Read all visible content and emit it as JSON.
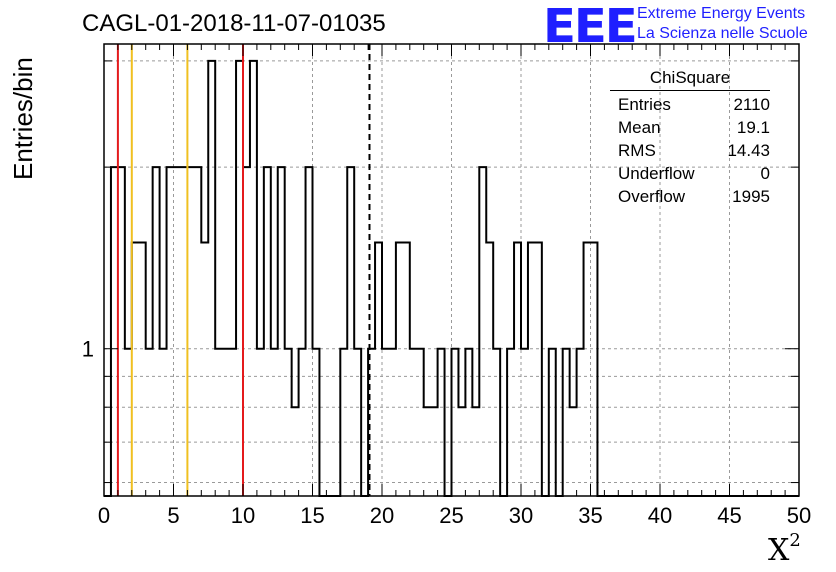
{
  "chart_data": {
    "type": "bar",
    "title": "CAGL-01-2018-11-07-01035",
    "xlabel": "X²",
    "ylabel": "Entries/bin",
    "xlim": [
      0,
      50
    ],
    "x_ticks": [
      "0",
      "5",
      "10",
      "15",
      "20",
      "25",
      "30",
      "35",
      "40",
      "45",
      "50"
    ],
    "y_scale": "log",
    "y_ticks": [
      "1"
    ],
    "ylim": [
      0.57,
      3.2
    ],
    "grid": true,
    "bin_width": 0.5,
    "bins_x_low": [
      0,
      0.5,
      1,
      1.5,
      2,
      2.5,
      3,
      3.5,
      4,
      4.5,
      5,
      5.5,
      6,
      6.5,
      7,
      7.5,
      8,
      8.5,
      9,
      9.5,
      10,
      10.5,
      11,
      11.5,
      12,
      12.5,
      13,
      13.5,
      14,
      14.5,
      15,
      15.5,
      16,
      16.5,
      17,
      17.5,
      18,
      18.5,
      19,
      19.5,
      20,
      20.5,
      21,
      21.5,
      22,
      22.5,
      23,
      23.5,
      24,
      24.5,
      25,
      25.5,
      26,
      26.5,
      27,
      27.5,
      28,
      28.5,
      29,
      29.5,
      30,
      30.5,
      31,
      31.5,
      32,
      32.5,
      33,
      33.5,
      34,
      34.5,
      35,
      35.5,
      36,
      36.5,
      37,
      37.5,
      38,
      38.5,
      39,
      39.5,
      40,
      40.5,
      41,
      41.5,
      42,
      42.5,
      43,
      43.5,
      44,
      44.5,
      45,
      45.5,
      46,
      46.5,
      47,
      47.5,
      48,
      48.5,
      49,
      49.5
    ],
    "values": [
      0,
      2,
      2,
      1,
      1.5,
      1.5,
      1,
      2,
      1,
      2,
      2,
      2,
      2,
      2,
      1.5,
      3,
      1,
      1,
      1,
      3,
      2,
      3,
      1,
      2,
      1,
      2,
      1,
      0.8,
      1,
      2,
      1,
      0,
      0,
      0,
      1,
      2,
      1,
      0,
      1,
      1.5,
      1,
      1,
      1.5,
      1.5,
      1,
      1,
      0.8,
      0.8,
      1,
      0,
      1,
      0.8,
      1,
      0.8,
      2,
      1.5,
      1,
      0,
      1,
      1.5,
      1,
      1.5,
      1.5,
      0,
      1,
      0,
      1,
      0.8,
      1,
      1.5,
      1.5,
      0,
      0,
      0,
      0,
      0,
      0,
      0,
      0,
      0,
      0,
      0,
      0,
      0,
      0,
      0,
      0,
      0,
      0,
      0,
      0,
      0,
      0,
      0,
      0,
      0,
      0,
      0,
      0,
      0
    ],
    "reference_lines": [
      {
        "x": 1,
        "color": "#e41a1c",
        "style": "solid"
      },
      {
        "x": 2,
        "color": "#f0c020",
        "style": "solid"
      },
      {
        "x": 6,
        "color": "#f0c020",
        "style": "solid"
      },
      {
        "x": 10,
        "color": "#e41a1c",
        "style": "solid"
      },
      {
        "x": 19.1,
        "color": "#000000",
        "style": "dashed"
      }
    ],
    "stats_box": {
      "title": "ChiSquare",
      "rows": [
        {
          "label": "Entries",
          "value": "2110"
        },
        {
          "label": "Mean",
          "value": "19.1"
        },
        {
          "label": "RMS",
          "value": "14.43"
        },
        {
          "label": "Underflow",
          "value": "0"
        },
        {
          "label": "Overflow",
          "value": "1995"
        }
      ]
    }
  },
  "logo": {
    "mark": "EEE",
    "line1": "Extreme Energy Events",
    "line2": "La Scienza nelle Scuole",
    "color": "#1f1fff"
  }
}
